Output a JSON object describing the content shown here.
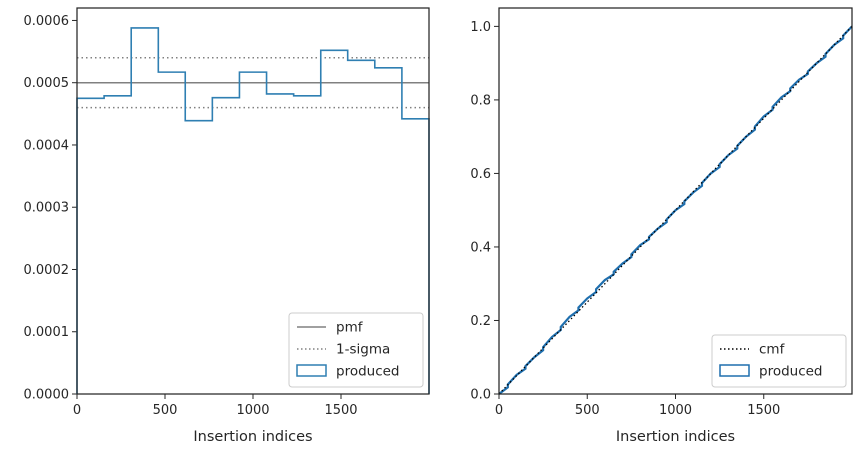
{
  "chart_data": [
    {
      "type": "histogram-step",
      "xlabel": "Insertion indices",
      "ylabel": "",
      "xlim": [
        0,
        2000
      ],
      "ylim": [
        0,
        0.00062
      ],
      "xticks": [
        {
          "value": 0,
          "label": "0"
        },
        {
          "value": 500,
          "label": "500"
        },
        {
          "value": 1000,
          "label": "1000"
        },
        {
          "value": 1500,
          "label": "1500"
        }
      ],
      "yticks": [
        {
          "value": 0,
          "label": "0.0000"
        },
        {
          "value": 0.0001,
          "label": "0.0001"
        },
        {
          "value": 0.0002,
          "label": "0.0002"
        },
        {
          "value": 0.0003,
          "label": "0.0003"
        },
        {
          "value": 0.0004,
          "label": "0.0004"
        },
        {
          "value": 0.0005,
          "label": "0.0005"
        },
        {
          "value": 0.0006,
          "label": "0.0006"
        }
      ],
      "bin_edges": [
        0,
        154,
        308,
        462,
        615,
        769,
        923,
        1077,
        1231,
        1385,
        1538,
        1692,
        1846,
        2000
      ],
      "values": [
        0.000475,
        0.000479,
        0.000588,
        0.000517,
        0.000439,
        0.000476,
        0.000517,
        0.000482,
        0.000479,
        0.000552,
        0.000536,
        0.000524,
        0.000442
      ],
      "pmf": 0.0005,
      "sigma_band": [
        0.00046,
        0.00054
      ],
      "legend": {
        "placement": "lower-right",
        "entries": [
          {
            "label": "pmf",
            "style": "solid",
            "color": "#808080"
          },
          {
            "label": "1-sigma",
            "style": "dotted",
            "color": "#808080"
          },
          {
            "label": "produced",
            "style": "patch",
            "color": "#2f7fb2"
          }
        ]
      },
      "grid": false
    },
    {
      "type": "cumulative-step",
      "xlabel": "Insertion indices",
      "ylabel": "",
      "xlim": [
        0,
        2000
      ],
      "ylim": [
        0,
        1.05
      ],
      "xticks": [
        {
          "value": 0,
          "label": "0"
        },
        {
          "value": 500,
          "label": "500"
        },
        {
          "value": 1000,
          "label": "1000"
        },
        {
          "value": 1500,
          "label": "1500"
        }
      ],
      "yticks": [
        {
          "value": 0,
          "label": "0.0"
        },
        {
          "value": 0.2,
          "label": "0.2"
        },
        {
          "value": 0.4,
          "label": "0.4"
        },
        {
          "value": 0.6,
          "label": "0.6"
        },
        {
          "value": 0.8,
          "label": "0.8"
        },
        {
          "value": 1.0,
          "label": "1.0"
        }
      ],
      "cmf": {
        "x": [
          0,
          2000
        ],
        "y": [
          0,
          1
        ]
      },
      "produced": {
        "x": [
          0,
          100,
          200,
          300,
          400,
          500,
          600,
          700,
          800,
          900,
          1000,
          1100,
          1200,
          1300,
          1400,
          1500,
          1600,
          1700,
          1800,
          1900,
          2000
        ],
        "y": [
          0,
          0.052,
          0.1,
          0.155,
          0.21,
          0.26,
          0.31,
          0.355,
          0.405,
          0.45,
          0.5,
          0.548,
          0.6,
          0.65,
          0.7,
          0.755,
          0.807,
          0.855,
          0.9,
          0.95,
          1.0
        ]
      },
      "legend": {
        "placement": "lower-right",
        "entries": [
          {
            "label": "cmf",
            "style": "dotted",
            "color": "#000000"
          },
          {
            "label": "produced",
            "style": "patch",
            "color": "#1f6fae"
          }
        ]
      },
      "grid": false
    }
  ]
}
